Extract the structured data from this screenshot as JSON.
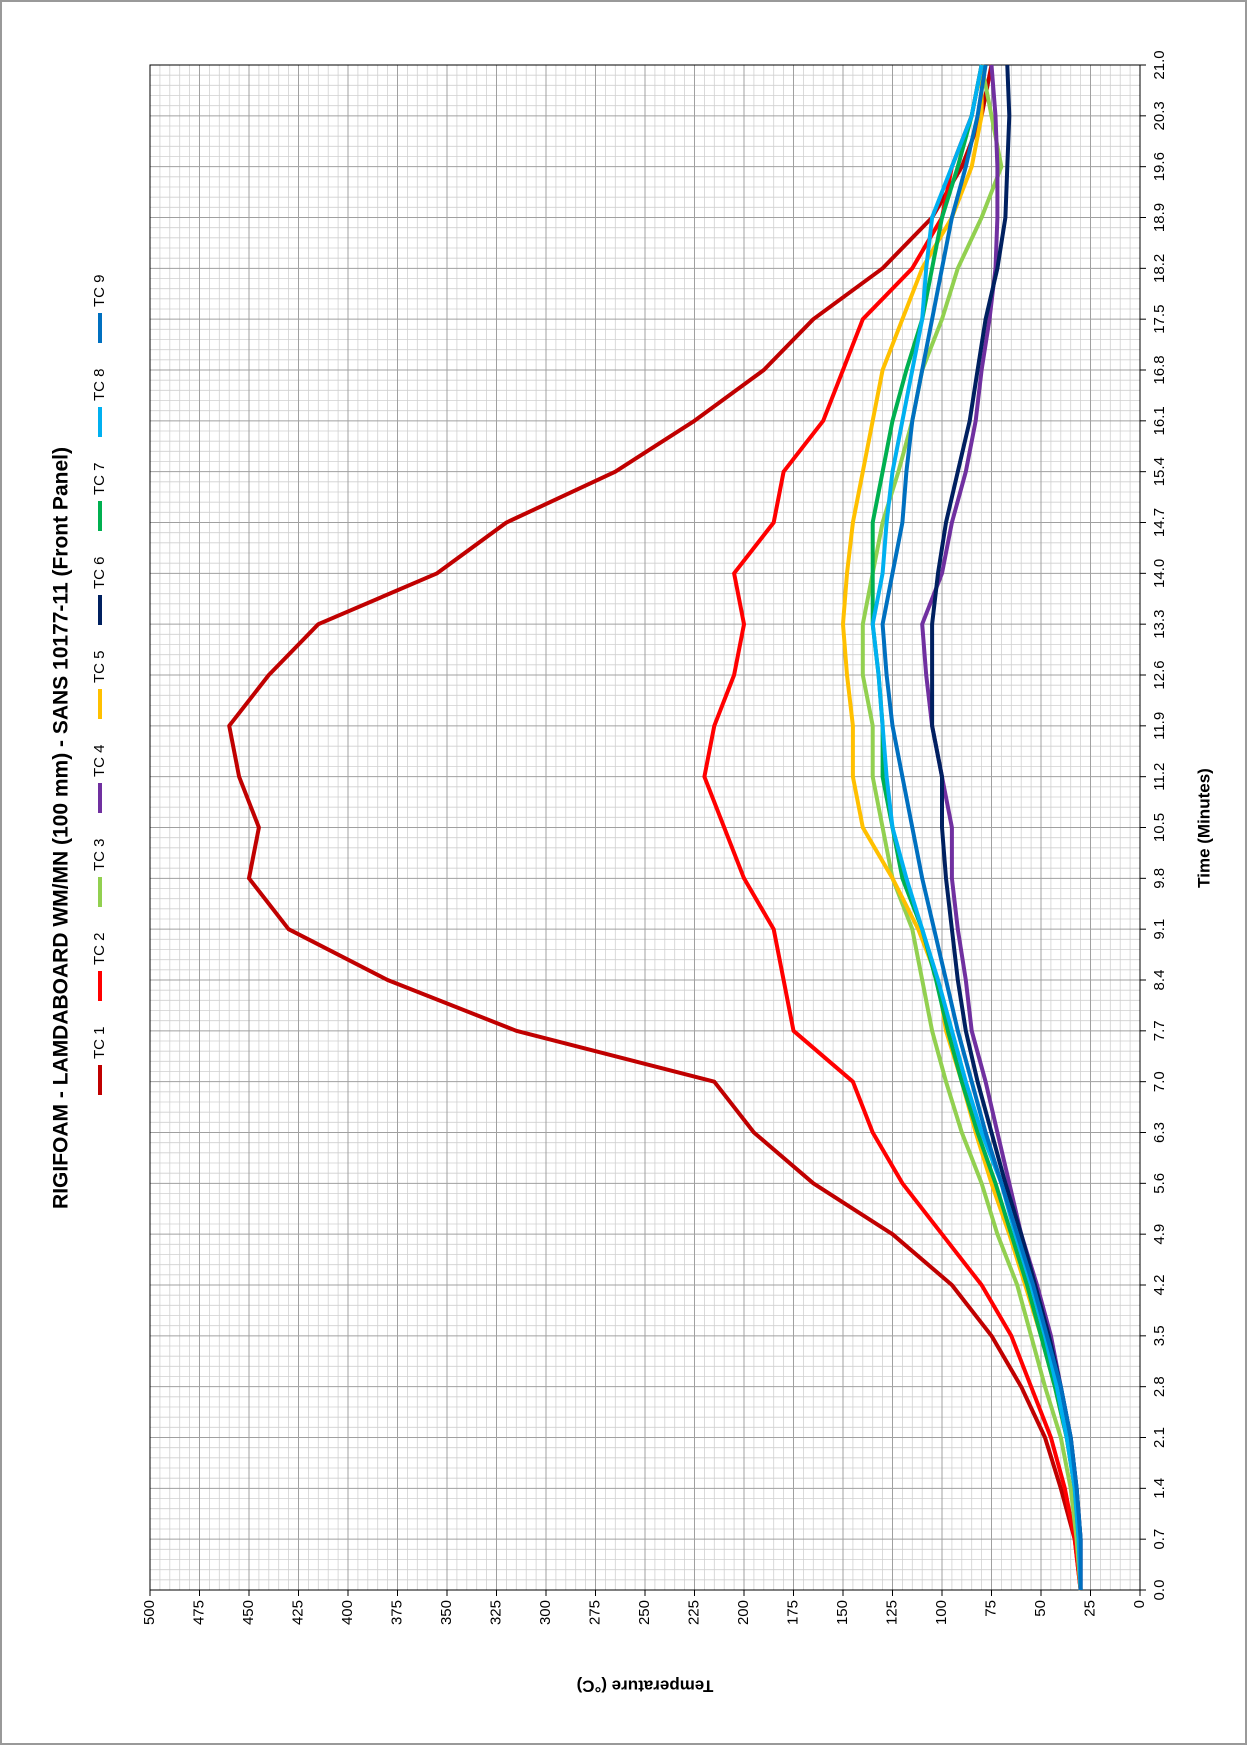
{
  "chart_data": {
    "type": "line",
    "title": "RIGIFOAM - LAMDABOARD WM/MN (100 mm) - SANS 10177-11 (Front Panel)",
    "x_label": "Time (Minutes)",
    "y_label": "Temperature (°C)",
    "x": [
      0,
      0.7,
      1.4,
      2.1,
      2.8,
      3.5,
      4.2,
      4.9,
      5.6,
      6.3,
      7,
      7.7,
      8.4,
      9.1,
      9.8,
      10.5,
      11.2,
      11.9,
      12.6,
      13.3,
      14,
      14.7,
      15.4,
      16.1,
      16.8,
      17.5,
      18.2,
      18.9,
      19.6,
      20.3,
      21
    ],
    "xlim": [
      0,
      21
    ],
    "xticks": [
      {
        "value": 0,
        "label": "0.0"
      },
      0.7,
      1.4,
      2.1,
      2.8,
      3.5,
      4.2,
      4.9,
      5.6,
      6.3,
      {
        "value": 7,
        "label": "7.0"
      },
      7.7,
      8.4,
      9.1,
      9.8,
      10.5,
      11.2,
      11.9,
      12.6,
      13.3,
      {
        "value": 14,
        "label": "14.0"
      },
      14.7,
      15.4,
      16.1,
      16.8,
      17.5,
      18.2,
      18.9,
      19.6,
      20.3,
      {
        "value": 21,
        "label": "21.0"
      }
    ],
    "ylim": [
      0,
      500
    ],
    "yticks": [
      0,
      25,
      50,
      75,
      100,
      125,
      150,
      175,
      200,
      225,
      250,
      275,
      300,
      325,
      350,
      375,
      400,
      425,
      450,
      475,
      500
    ],
    "grid": true,
    "series": [
      {
        "name": "TC 1",
        "color": "#c00000",
        "values": [
          30,
          33,
          40,
          48,
          60,
          75,
          95,
          125,
          165,
          195,
          215,
          315,
          380,
          430,
          450,
          445,
          455,
          460,
          440,
          415,
          355,
          320,
          265,
          225,
          190,
          165,
          130,
          105,
          90,
          80,
          75
        ]
      },
      {
        "name": "TC 2",
        "color": "#ff0000",
        "values": [
          30,
          33,
          38,
          45,
          55,
          65,
          80,
          100,
          120,
          135,
          145,
          175,
          180,
          185,
          200,
          210,
          220,
          215,
          205,
          200,
          205,
          185,
          180,
          160,
          150,
          140,
          115,
          100,
          95,
          85,
          80
        ]
      },
      {
        "name": "TC 3",
        "color": "#92d050",
        "values": [
          30,
          32,
          35,
          40,
          48,
          55,
          62,
          72,
          80,
          90,
          98,
          105,
          110,
          115,
          125,
          130,
          135,
          135,
          140,
          140,
          135,
          130,
          122,
          115,
          110,
          100,
          92,
          80,
          70,
          75,
          80
        ]
      },
      {
        "name": "TC 4",
        "color": "#7030a0",
        "values": [
          30,
          30,
          32,
          35,
          40,
          45,
          52,
          60,
          66,
          72,
          78,
          85,
          88,
          92,
          95,
          95,
          100,
          105,
          108,
          110,
          100,
          95,
          88,
          83,
          80,
          76,
          73,
          72,
          72,
          73,
          75
        ]
      },
      {
        "name": "TC 5",
        "color": "#ffc000",
        "values": [
          30,
          31,
          33,
          37,
          43,
          50,
          58,
          66,
          75,
          83,
          90,
          98,
          102,
          112,
          125,
          140,
          145,
          145,
          148,
          150,
          148,
          145,
          140,
          135,
          130,
          120,
          110,
          95,
          85,
          80,
          80
        ]
      },
      {
        "name": "TC 6",
        "color": "#002060",
        "values": [
          30,
          30,
          32,
          35,
          40,
          46,
          53,
          60,
          68,
          75,
          82,
          88,
          92,
          95,
          98,
          100,
          100,
          105,
          105,
          105,
          102,
          98,
          92,
          86,
          82,
          78,
          72,
          68,
          67,
          66,
          67
        ]
      },
      {
        "name": "TC 7",
        "color": "#00b050",
        "values": [
          30,
          31,
          33,
          37,
          43,
          50,
          57,
          65,
          73,
          82,
          90,
          97,
          103,
          110,
          120,
          125,
          130,
          130,
          132,
          135,
          135,
          135,
          130,
          125,
          118,
          110,
          105,
          100,
          92,
          85,
          80
        ]
      },
      {
        "name": "TC 8",
        "color": "#00b0f0",
        "values": [
          30,
          31,
          33,
          37,
          42,
          48,
          55,
          63,
          70,
          80,
          88,
          95,
          102,
          110,
          118,
          125,
          128,
          130,
          132,
          135,
          130,
          128,
          125,
          120,
          115,
          110,
          108,
          105,
          95,
          85,
          80
        ]
      },
      {
        "name": "TC 9",
        "color": "#0070c0",
        "values": [
          30,
          30,
          32,
          35,
          40,
          47,
          54,
          62,
          70,
          78,
          85,
          92,
          98,
          104,
          110,
          115,
          120,
          125,
          128,
          130,
          125,
          120,
          118,
          115,
          110,
          105,
          100,
          95,
          88,
          82,
          78
        ]
      }
    ]
  }
}
